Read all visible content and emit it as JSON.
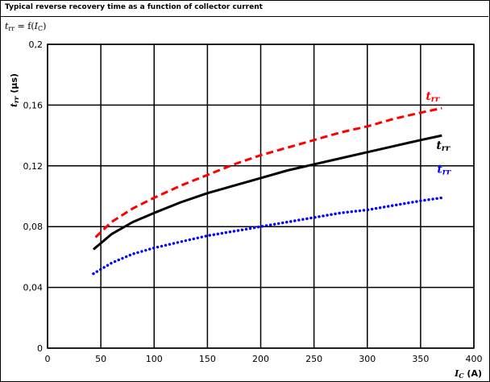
{
  "header": {
    "title": "Typical reverse recovery time as a function of collector current",
    "func_base": "t",
    "func_sub": "rr",
    "func_mid": " = f(",
    "func_arg": "I",
    "func_arg_sub": "C",
    "func_end": ")"
  },
  "chart_data": {
    "type": "line",
    "ylabel_main": "t",
    "ylabel_sub": "rr",
    "ylabel_unit": " (µs)",
    "xlabel_main": "I",
    "xlabel_sub": "C",
    "xlabel_unit": " (A)",
    "xlim": [
      0,
      400
    ],
    "ylim": [
      0,
      0.2
    ],
    "x_ticks": [
      0,
      50,
      100,
      150,
      200,
      250,
      300,
      350,
      400
    ],
    "y_ticks": [
      0,
      0.04,
      0.08,
      0.12,
      0.16,
      0.2
    ],
    "y_tick_labels": [
      "0",
      "0,04",
      "0,08",
      "0,12",
      "0,16",
      "0,2"
    ],
    "grid": true,
    "series": [
      {
        "label_main": "t",
        "label_sub": "rr",
        "color": "#ff0000",
        "style": "dashed",
        "x": [
          45,
          60,
          80,
          100,
          125,
          150,
          175,
          200,
          225,
          250,
          275,
          300,
          325,
          350,
          370
        ],
        "y": [
          0.073,
          0.083,
          0.092,
          0.099,
          0.107,
          0.114,
          0.121,
          0.127,
          0.132,
          0.137,
          0.142,
          0.146,
          0.151,
          0.155,
          0.158
        ]
      },
      {
        "label_main": "t",
        "label_sub": "rr",
        "color": "#000000",
        "style": "solid",
        "x": [
          43,
          60,
          80,
          100,
          125,
          150,
          175,
          200,
          225,
          250,
          275,
          300,
          325,
          350,
          370
        ],
        "y": [
          0.065,
          0.075,
          0.083,
          0.089,
          0.096,
          0.102,
          0.107,
          0.112,
          0.117,
          0.121,
          0.125,
          0.129,
          0.133,
          0.137,
          0.14
        ]
      },
      {
        "label_main": "t",
        "label_sub": "rr",
        "color": "#0000ff",
        "style": "dotted",
        "x": [
          43,
          60,
          80,
          100,
          125,
          150,
          175,
          200,
          225,
          250,
          275,
          300,
          325,
          350,
          370
        ],
        "y": [
          0.049,
          0.056,
          0.062,
          0.066,
          0.07,
          0.074,
          0.077,
          0.08,
          0.083,
          0.086,
          0.089,
          0.091,
          0.094,
          0.097,
          0.099
        ]
      }
    ]
  }
}
